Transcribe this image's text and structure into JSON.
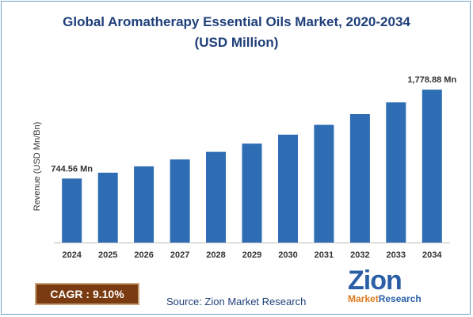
{
  "title_line1": "Global Aromatherapy Essential Oils Market, 2020-2034",
  "title_line2": "(USD Million)",
  "chart_data": {
    "type": "bar",
    "categories": [
      "2024",
      "2025",
      "2026",
      "2027",
      "2028",
      "2029",
      "2030",
      "2031",
      "2032",
      "2033",
      "2034"
    ],
    "values": [
      744.56,
      812.3,
      886.2,
      966.9,
      1054.9,
      1150.9,
      1255.6,
      1369.9,
      1494.5,
      1630.5,
      1778.88
    ],
    "ylabel": "Revenue (USD Mn/Bn)",
    "ylim": [
      0,
      1900
    ],
    "bar_color": "#2e6db3",
    "grid": false,
    "data_labels": [
      {
        "index": 0,
        "text": "744.56 Mn"
      },
      {
        "index": 10,
        "text": "1,778.88 Mn"
      }
    ]
  },
  "cagr_text": "CAGR : 9.10%",
  "source_text": "Source: Zion Market Research",
  "logo": {
    "top": "Zion",
    "bottom_left": "Market",
    "bottom_right": "Research"
  }
}
